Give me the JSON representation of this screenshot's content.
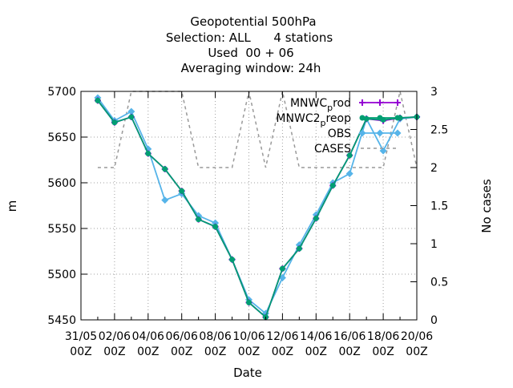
{
  "header": {
    "line1": "Geopotential 500hPa",
    "line2": "Selection: ALL      4 stations",
    "line3": "Used  00 + 06",
    "line4": "Averaging window: 24h"
  },
  "axes": {
    "xlabel": "Date",
    "ylabel": "m",
    "y2label": "No cases"
  },
  "legend": {
    "placement": "top-right",
    "entries": [
      {
        "key": "mnwc_prod",
        "main": "MNWC",
        "sub": "p",
        "tail": "rod",
        "color": "#9400D3",
        "marker": "plus"
      },
      {
        "key": "mnwc2_preop",
        "main": "MNWC2",
        "sub": "p",
        "tail": "reop",
        "color": "#009E73",
        "marker": "circle"
      },
      {
        "key": "obs",
        "main": "OBS",
        "sub": "",
        "tail": "",
        "color": "#56B4E9",
        "marker": "diamond"
      },
      {
        "key": "cases",
        "main": "CASES",
        "sub": "",
        "tail": "",
        "color": "#999999",
        "marker": "dash"
      }
    ]
  },
  "chart_data": {
    "type": "line",
    "x": [
      "2023-06-01",
      "2023-06-02",
      "2023-06-03",
      "2023-06-04",
      "2023-06-05",
      "2023-06-06",
      "2023-06-07",
      "2023-06-08",
      "2023-06-09",
      "2023-06-10",
      "2023-06-11",
      "2023-06-12",
      "2023-06-13",
      "2023-06-14",
      "2023-06-15",
      "2023-06-16",
      "2023-06-17",
      "2023-06-18",
      "2023-06-19",
      "2023-06-20"
    ],
    "xlim": [
      "2023-05-31",
      "2023-06-20"
    ],
    "xticks": [
      {
        "date": "2023-05-31",
        "label": [
          "31/05",
          "00Z"
        ]
      },
      {
        "date": "2023-06-02",
        "label": [
          "02/06",
          "00Z"
        ]
      },
      {
        "date": "2023-06-04",
        "label": [
          "04/06",
          "00Z"
        ]
      },
      {
        "date": "2023-06-06",
        "label": [
          "06/06",
          "00Z"
        ]
      },
      {
        "date": "2023-06-08",
        "label": [
          "08/06",
          "00Z"
        ]
      },
      {
        "date": "2023-06-10",
        "label": [
          "10/06",
          "00Z"
        ]
      },
      {
        "date": "2023-06-12",
        "label": [
          "12/06",
          "00Z"
        ]
      },
      {
        "date": "2023-06-14",
        "label": [
          "14/06",
          "00Z"
        ]
      },
      {
        "date": "2023-06-16",
        "label": [
          "16/06",
          "00Z"
        ]
      },
      {
        "date": "2023-06-18",
        "label": [
          "18/06",
          "00Z"
        ]
      },
      {
        "date": "2023-06-20",
        "label": [
          "20/06",
          "00Z"
        ]
      }
    ],
    "ylim": [
      5450,
      5700
    ],
    "yticks": [
      5450,
      5500,
      5550,
      5600,
      5650,
      5700
    ],
    "y2lim": [
      0,
      3
    ],
    "y2ticks": [
      0,
      0.5,
      1,
      1.5,
      2,
      2.5,
      3
    ],
    "grid": true,
    "series": [
      {
        "name": "MNWC_prod",
        "axis": "y",
        "color": "#9400D3",
        "values": [
          5690,
          5666,
          5672,
          5632,
          5615,
          5591,
          5560,
          5552,
          5516,
          5469,
          5453,
          5506,
          5528,
          5561,
          5597,
          5630,
          5670,
          5668,
          5671,
          5672
        ]
      },
      {
        "name": "MNWC2_preop",
        "axis": "y",
        "color": "#009E73",
        "values": [
          5690,
          5666,
          5672,
          5632,
          5615,
          5591,
          5560,
          5552,
          5516,
          5469,
          5453,
          5506,
          5528,
          5561,
          5597,
          5630,
          5670,
          5669,
          5671,
          5672
        ]
      },
      {
        "name": "OBS",
        "axis": "y",
        "color": "#56B4E9",
        "values": [
          5693,
          5668,
          5678,
          5637,
          5581,
          5588,
          5564,
          5556,
          5516,
          5472,
          5457,
          5496,
          5532,
          5565,
          5600,
          5610,
          5670,
          5635,
          5670,
          5672
        ]
      },
      {
        "name": "CASES",
        "axis": "y2",
        "color": "#999999",
        "dashed": true,
        "x": [
          "2023-06-01",
          "2023-06-02",
          "2023-06-03",
          "2023-06-04",
          "2023-06-05",
          "2023-06-05",
          "2023-06-06",
          "2023-06-07",
          "2023-06-08",
          "2023-06-09",
          "2023-06-10",
          "2023-06-11",
          "2023-06-12",
          "2023-06-13",
          "2023-06-14",
          "2023-06-15",
          "2023-06-16",
          "2023-06-17",
          "2023-06-18",
          "2023-06-19",
          "2023-06-20"
        ],
        "values": [
          2,
          2,
          3,
          3,
          3,
          3,
          3,
          2,
          2,
          2,
          3,
          2,
          3,
          2,
          2,
          2,
          2,
          2,
          2,
          3,
          2
        ]
      }
    ]
  }
}
